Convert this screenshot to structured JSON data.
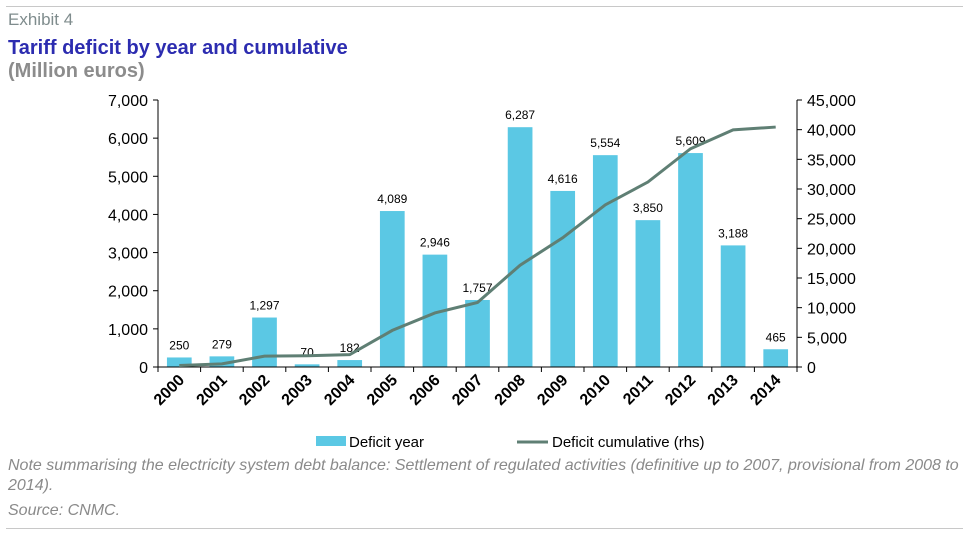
{
  "header": {
    "exhibit": "Exhibit 4",
    "title": "Tariff deficit by year and cumulative",
    "subtitle": "(Million euros)"
  },
  "footer": {
    "note": "Note summarising the electricity system debt balance: Settlement of regulated activities (definitive up to 2007, provisional from 2008 to 2014).",
    "source": "Source: CNMC."
  },
  "colors": {
    "bar": "#5bc8e4",
    "line": "#5f7f74",
    "title": "#2c2cb0"
  },
  "chart_data": {
    "type": "bar+line",
    "categories": [
      "2000",
      "2001",
      "2002",
      "2003",
      "2004",
      "2005",
      "2006",
      "2007",
      "2008",
      "2009",
      "2010",
      "2011",
      "2012",
      "2013",
      "2014"
    ],
    "series": [
      {
        "name": "Deficit year",
        "type": "bar",
        "axis": "left",
        "values": [
          250,
          279,
          1297,
          70,
          182,
          4089,
          2946,
          1757,
          6287,
          4616,
          5554,
          3850,
          5609,
          3188,
          465
        ],
        "labels": [
          "250",
          "279",
          "1,297",
          "70",
          "182",
          "4,089",
          "2,946",
          "1,757",
          "6,287",
          "4,616",
          "5,554",
          "3,850",
          "5,609",
          "3,188",
          "465"
        ]
      },
      {
        "name": "Deficit cumulative (rhs)",
        "type": "line",
        "axis": "right",
        "values": [
          250,
          529,
          1826,
          1896,
          2078,
          6167,
          9113,
          10870,
          17157,
          21773,
          27327,
          31177,
          36786,
          39974,
          40439
        ]
      }
    ],
    "y_left": {
      "min": 0,
      "max": 7000,
      "ticks": [
        "0",
        "1,000",
        "2,000",
        "3,000",
        "4,000",
        "5,000",
        "6,000",
        "7,000"
      ]
    },
    "y_right": {
      "min": 0,
      "max": 45000,
      "ticks": [
        "0",
        "5,000",
        "10,000",
        "15,000",
        "20,000",
        "25,000",
        "30,000",
        "35,000",
        "40,000",
        "45,000"
      ]
    },
    "legend_position": "bottom",
    "grid": false
  }
}
